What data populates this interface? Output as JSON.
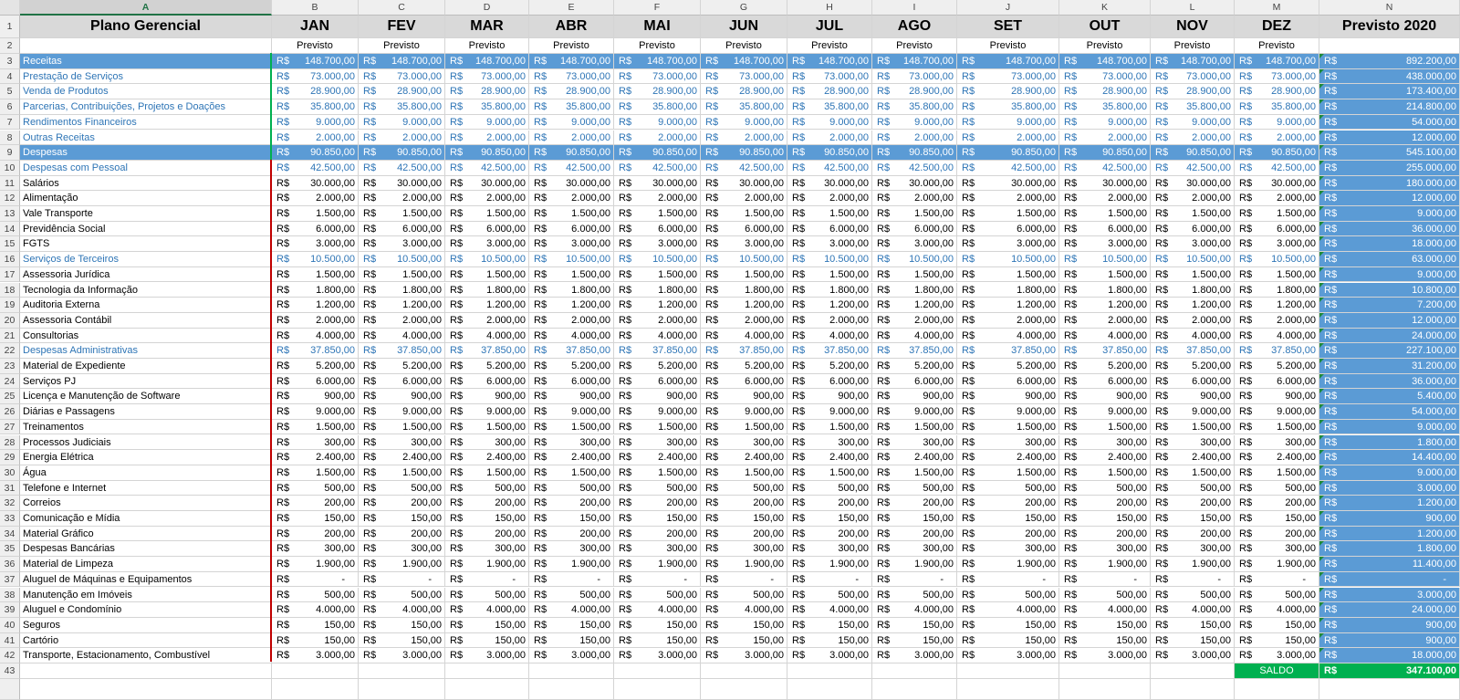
{
  "columns": [
    "A",
    "B",
    "C",
    "D",
    "E",
    "F",
    "G",
    "H",
    "I",
    "J",
    "K",
    "L",
    "M",
    "N"
  ],
  "selected_column": "A",
  "title": "Plano Gerencial",
  "months": [
    "JAN",
    "FEV",
    "MAR",
    "ABR",
    "MAI",
    "JUN",
    "JUL",
    "AGO",
    "SET",
    "OUT",
    "NOV",
    "DEZ"
  ],
  "total_header": "Previsto 2020",
  "subheader": "Previsto",
  "currency": "R$",
  "rows": [
    {
      "n": "3",
      "label": "Receitas",
      "style": "A",
      "m": "148.700,00",
      "t": "892.200,00"
    },
    {
      "n": "4",
      "label": "Prestação de Serviços",
      "style": "B",
      "m": "73.000,00",
      "t": "438.000,00"
    },
    {
      "n": "5",
      "label": "Venda de Produtos",
      "style": "B",
      "m": "28.900,00",
      "t": "173.400,00"
    },
    {
      "n": "6",
      "label": "Parcerias, Contribuições, Projetos e Doações",
      "style": "B",
      "m": "35.800,00",
      "t": "214.800,00"
    },
    {
      "n": "7",
      "label": "Rendimentos Financeiros",
      "style": "B",
      "m": "9.000,00",
      "t": "54.000,00"
    },
    {
      "n": "8",
      "label": "Outras Receitas",
      "style": "B",
      "m": "2.000,00",
      "t": "12.000,00"
    },
    {
      "n": "9",
      "label": "Despesas",
      "style": "A",
      "m": "90.850,00",
      "t": "545.100,00"
    },
    {
      "n": "10",
      "label": "Despesas com Pessoal",
      "style": "B",
      "m": "42.500,00",
      "t": "255.000,00"
    },
    {
      "n": "11",
      "label": "Salários",
      "style": "N",
      "m": "30.000,00",
      "t": "180.000,00"
    },
    {
      "n": "12",
      "label": "Alimentação",
      "style": "N",
      "m": "2.000,00",
      "t": "12.000,00"
    },
    {
      "n": "13",
      "label": "Vale Transporte",
      "style": "N",
      "m": "1.500,00",
      "t": "9.000,00"
    },
    {
      "n": "14",
      "label": "Previdência Social",
      "style": "N",
      "m": "6.000,00",
      "t": "36.000,00"
    },
    {
      "n": "15",
      "label": "FGTS",
      "style": "N",
      "m": "3.000,00",
      "t": "18.000,00"
    },
    {
      "n": "16",
      "label": "Serviços de Terceiros",
      "style": "B",
      "m": "10.500,00",
      "t": "63.000,00"
    },
    {
      "n": "17",
      "label": "Assessoria Jurídica",
      "style": "N",
      "m": "1.500,00",
      "t": "9.000,00"
    },
    {
      "n": "18",
      "label": "Tecnologia da Informação",
      "style": "N",
      "m": "1.800,00",
      "t": "10.800,00"
    },
    {
      "n": "19",
      "label": "Auditoria Externa",
      "style": "N",
      "m": "1.200,00",
      "t": "7.200,00"
    },
    {
      "n": "20",
      "label": "Assessoria Contábil",
      "style": "N",
      "m": "2.000,00",
      "t": "12.000,00"
    },
    {
      "n": "21",
      "label": "Consultorias",
      "style": "N",
      "m": "4.000,00",
      "t": "24.000,00"
    },
    {
      "n": "22",
      "label": "Despesas Administrativas",
      "style": "B",
      "m": "37.850,00",
      "t": "227.100,00"
    },
    {
      "n": "23",
      "label": "Material de Expediente",
      "style": "N",
      "m": "5.200,00",
      "t": "31.200,00"
    },
    {
      "n": "24",
      "label": "Serviços PJ",
      "style": "N",
      "m": "6.000,00",
      "t": "36.000,00"
    },
    {
      "n": "25",
      "label": "Licença e Manutenção de Software",
      "style": "N",
      "m": "900,00",
      "t": "5.400,00"
    },
    {
      "n": "26",
      "label": "Diárias e Passagens",
      "style": "N",
      "m": "9.000,00",
      "t": "54.000,00"
    },
    {
      "n": "27",
      "label": "Treinamentos",
      "style": "N",
      "m": "1.500,00",
      "t": "9.000,00"
    },
    {
      "n": "28",
      "label": "Processos Judiciais",
      "style": "N",
      "m": "300,00",
      "t": "1.800,00"
    },
    {
      "n": "29",
      "label": "Energia Elétrica",
      "style": "N",
      "m": "2.400,00",
      "t": "14.400,00"
    },
    {
      "n": "30",
      "label": "Água",
      "style": "N",
      "m": "1.500,00",
      "t": "9.000,00"
    },
    {
      "n": "31",
      "label": "Telefone e Internet",
      "style": "N",
      "m": "500,00",
      "t": "3.000,00"
    },
    {
      "n": "32",
      "label": "Correios",
      "style": "N",
      "m": "200,00",
      "t": "1.200,00"
    },
    {
      "n": "33",
      "label": "Comunicação e Mídia",
      "style": "N",
      "m": "150,00",
      "t": "900,00"
    },
    {
      "n": "34",
      "label": "Material Gráfico",
      "style": "N",
      "m": "200,00",
      "t": "1.200,00"
    },
    {
      "n": "35",
      "label": "Despesas Bancárias",
      "style": "N",
      "m": "300,00",
      "t": "1.800,00"
    },
    {
      "n": "36",
      "label": "Material de Limpeza",
      "style": "N",
      "m": "1.900,00",
      "t": "11.400,00"
    },
    {
      "n": "37",
      "label": "Aluguel de Máquinas e Equipamentos",
      "style": "N",
      "m": "-",
      "t": "-"
    },
    {
      "n": "38",
      "label": "Manutenção em Imóveis",
      "style": "N",
      "m": "500,00",
      "t": "3.000,00"
    },
    {
      "n": "39",
      "label": "Aluguel e Condomínio",
      "style": "N",
      "m": "4.000,00",
      "t": "24.000,00"
    },
    {
      "n": "40",
      "label": "Seguros",
      "style": "N",
      "m": "150,00",
      "t": "900,00"
    },
    {
      "n": "41",
      "label": "Cartório",
      "style": "N",
      "m": "150,00",
      "t": "900,00"
    },
    {
      "n": "42",
      "label": "Transporte, Estacionamento, Combustível",
      "style": "N",
      "m": "3.000,00",
      "t": "18.000,00"
    }
  ],
  "saldo": {
    "row": "43",
    "label": "SALDO",
    "currency": "R$",
    "value": "347.100,00"
  },
  "colors": {
    "blue_row": "#5b9bd5",
    "blue_text": "#2e75b6",
    "green": "#00b050",
    "red_border": "#c00000",
    "header_gray": "#d9d9d9"
  }
}
